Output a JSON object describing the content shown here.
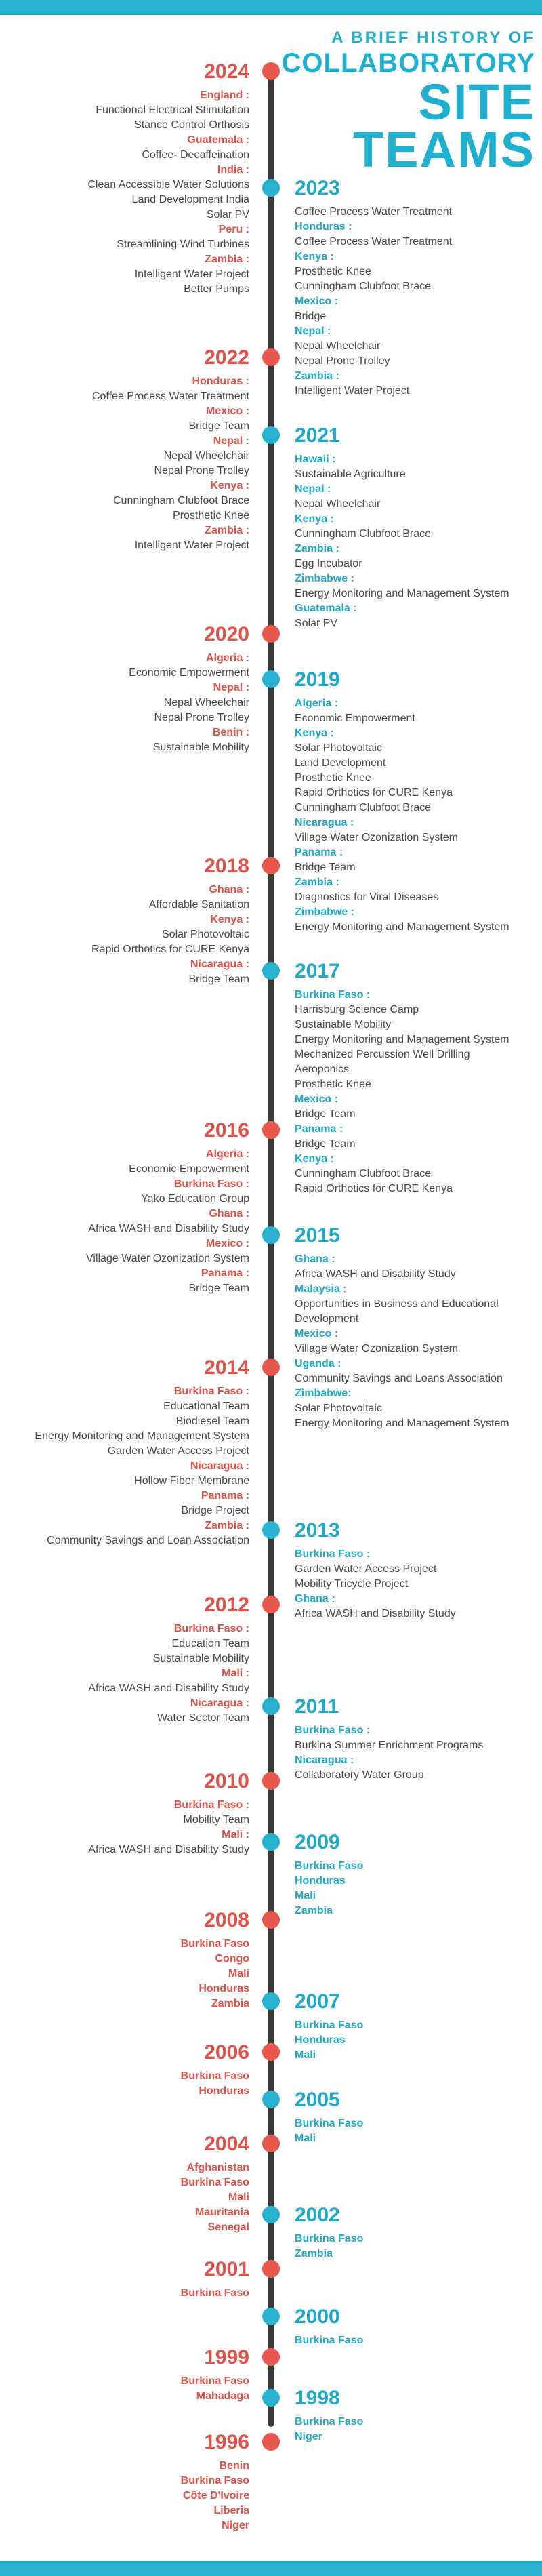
{
  "header": {
    "line1": "A BRIEF HISTORY OF",
    "line2": "COLLABORATORY",
    "line3": "SITE",
    "line4": "TEAMS"
  },
  "colors": {
    "accent_red": "#e8574e",
    "accent_blue": "#28b2cf",
    "timeline": "#3a3a3a"
  },
  "entries": [
    {
      "year": "2024",
      "side": "left",
      "lines": [
        {
          "t": "c",
          "v": "England :"
        },
        {
          "t": "i",
          "v": "Functional Electrical Stimulation"
        },
        {
          "t": "i",
          "v": "Stance Control Orthosis"
        },
        {
          "t": "c",
          "v": "Guatemala :"
        },
        {
          "t": "i",
          "v": "Coffee- Decaffeination"
        },
        {
          "t": "c",
          "v": "India :"
        },
        {
          "t": "i",
          "v": "Clean Accessible Water Solutions"
        },
        {
          "t": "i",
          "v": "Land Development India"
        },
        {
          "t": "i",
          "v": "Solar PV"
        },
        {
          "t": "c",
          "v": "Peru :"
        },
        {
          "t": "i",
          "v": "Streamlining Wind Turbines"
        },
        {
          "t": "c",
          "v": "Zambia :"
        },
        {
          "t": "i",
          "v": "Intelligent Water Project"
        },
        {
          "t": "i",
          "v": "Better Pumps"
        }
      ]
    },
    {
      "year": "2023",
      "side": "right",
      "lines": [
        {
          "t": "i",
          "v": "Coffee Process Water Treatment"
        },
        {
          "t": "c",
          "v": "Honduras :"
        },
        {
          "t": "i",
          "v": "Coffee Process Water Treatment"
        },
        {
          "t": "c",
          "v": "Kenya :"
        },
        {
          "t": "i",
          "v": "Prosthetic Knee"
        },
        {
          "t": "i",
          "v": "Cunningham Clubfoot Brace"
        },
        {
          "t": "c",
          "v": "Mexico :"
        },
        {
          "t": "i",
          "v": "Bridge"
        },
        {
          "t": "c",
          "v": "Nepal :"
        },
        {
          "t": "i",
          "v": "Nepal Wheelchair"
        },
        {
          "t": "i",
          "v": "Nepal Prone Trolley"
        },
        {
          "t": "c",
          "v": "Zambia :"
        },
        {
          "t": "i",
          "v": "Intelligent Water Project"
        }
      ]
    },
    {
      "year": "2022",
      "side": "left",
      "lines": [
        {
          "t": "c",
          "v": "Honduras :"
        },
        {
          "t": "i",
          "v": "Coffee Process Water Treatment"
        },
        {
          "t": "c",
          "v": "Mexico :"
        },
        {
          "t": "i",
          "v": "Bridge Team"
        },
        {
          "t": "c",
          "v": "Nepal :"
        },
        {
          "t": "i",
          "v": "Nepal Wheelchair"
        },
        {
          "t": "i",
          "v": "Nepal Prone Trolley"
        },
        {
          "t": "c",
          "v": "Kenya :"
        },
        {
          "t": "i",
          "v": "Cunningham Clubfoot Brace"
        },
        {
          "t": "i",
          "v": "Prosthetic Knee"
        },
        {
          "t": "c",
          "v": "Zambia :"
        },
        {
          "t": "i",
          "v": "Intelligent Water Project"
        }
      ]
    },
    {
      "year": "2021",
      "side": "right",
      "lines": [
        {
          "t": "c",
          "v": "Hawaii :"
        },
        {
          "t": "i",
          "v": "Sustainable Agriculture"
        },
        {
          "t": "c",
          "v": "Nepal :"
        },
        {
          "t": "i",
          "v": "Nepal Wheelchair"
        },
        {
          "t": "c",
          "v": "Kenya :"
        },
        {
          "t": "i",
          "v": "Cunningham Clubfoot Brace"
        },
        {
          "t": "c",
          "v": "Zambia :"
        },
        {
          "t": "i",
          "v": "Egg Incubator"
        },
        {
          "t": "c",
          "v": "Zimbabwe :"
        },
        {
          "t": "i",
          "v": "Energy Monitoring and Management System"
        },
        {
          "t": "c",
          "v": "Guatemala :"
        },
        {
          "t": "i",
          "v": "Solar PV"
        }
      ]
    },
    {
      "year": "2020",
      "side": "left",
      "lines": [
        {
          "t": "c",
          "v": "Algeria :"
        },
        {
          "t": "i",
          "v": "Economic Empowerment"
        },
        {
          "t": "c",
          "v": "Nepal :"
        },
        {
          "t": "i",
          "v": "Nepal Wheelchair"
        },
        {
          "t": "i",
          "v": "Nepal Prone Trolley"
        },
        {
          "t": "c",
          "v": "Benin :"
        },
        {
          "t": "i",
          "v": "Sustainable Mobility"
        }
      ]
    },
    {
      "year": "2019",
      "side": "right",
      "lines": [
        {
          "t": "c",
          "v": "Algeria :"
        },
        {
          "t": "i",
          "v": "Economic Empowerment"
        },
        {
          "t": "c",
          "v": "Kenya :"
        },
        {
          "t": "i",
          "v": "Solar Photovoltaic"
        },
        {
          "t": "i",
          "v": "Land Development"
        },
        {
          "t": "i",
          "v": "Prosthetic Knee"
        },
        {
          "t": "i",
          "v": "Rapid Orthotics for CURE Kenya"
        },
        {
          "t": "i",
          "v": "Cunningham Clubfoot Brace"
        },
        {
          "t": "c",
          "v": "Nicaragua :"
        },
        {
          "t": "i",
          "v": "Village Water Ozonization System"
        },
        {
          "t": "c",
          "v": "Panama :"
        },
        {
          "t": "i",
          "v": "Bridge Team"
        },
        {
          "t": "c",
          "v": "Zambia :"
        },
        {
          "t": "i",
          "v": "Diagnostics for Viral Diseases"
        },
        {
          "t": "c",
          "v": "Zimbabwe :"
        },
        {
          "t": "i",
          "v": "Energy Monitoring and Management System"
        }
      ]
    },
    {
      "year": "2018",
      "side": "left",
      "lines": [
        {
          "t": "c",
          "v": "Ghana :"
        },
        {
          "t": "i",
          "v": "Affordable Sanitation"
        },
        {
          "t": "c",
          "v": "Kenya :"
        },
        {
          "t": "i",
          "v": "Solar Photovoltaic"
        },
        {
          "t": "i",
          "v": "Rapid Orthotics for CURE Kenya"
        },
        {
          "t": "c",
          "v": "Nicaragua :"
        },
        {
          "t": "i",
          "v": "Bridge Team"
        }
      ]
    },
    {
      "year": "2017",
      "side": "right",
      "lines": [
        {
          "t": "c",
          "v": "Burkina Faso :"
        },
        {
          "t": "i",
          "v": "Harrisburg Science Camp"
        },
        {
          "t": "i",
          "v": "Sustainable Mobility"
        },
        {
          "t": "i",
          "v": "Energy Monitoring and Management System"
        },
        {
          "t": "i",
          "v": "Mechanized Percussion Well Drilling"
        },
        {
          "t": "i",
          "v": "Aeroponics"
        },
        {
          "t": "i",
          "v": "Prosthetic Knee"
        },
        {
          "t": "c",
          "v": "Mexico :"
        },
        {
          "t": "i",
          "v": "Bridge Team"
        },
        {
          "t": "c",
          "v": "Panama :"
        },
        {
          "t": "i",
          "v": "Bridge Team"
        },
        {
          "t": "c",
          "v": "Kenya :"
        },
        {
          "t": "i",
          "v": "Cunningham Clubfoot Brace"
        },
        {
          "t": "i",
          "v": "Rapid Orthotics for CURE Kenya"
        }
      ]
    },
    {
      "year": "2016",
      "side": "left",
      "lines": [
        {
          "t": "c",
          "v": "Algeria :"
        },
        {
          "t": "i",
          "v": "Economic Empowerment"
        },
        {
          "t": "c",
          "v": "Burkina Faso :"
        },
        {
          "t": "i",
          "v": "Yako Education Group"
        },
        {
          "t": "c",
          "v": "Ghana :"
        },
        {
          "t": "i",
          "v": "Africa WASH and Disability Study"
        },
        {
          "t": "c",
          "v": "Mexico :"
        },
        {
          "t": "i",
          "v": "Village Water Ozonization System"
        },
        {
          "t": "c",
          "v": "Panama :"
        },
        {
          "t": "i",
          "v": "Bridge Team"
        }
      ]
    },
    {
      "year": "2015",
      "side": "right",
      "lines": [
        {
          "t": "c",
          "v": "Ghana :"
        },
        {
          "t": "i",
          "v": "Africa WASH and Disability Study"
        },
        {
          "t": "c",
          "v": "Malaysia :"
        },
        {
          "t": "i",
          "v": "Opportunities in Business and Educational"
        },
        {
          "t": "i",
          "v": "Development"
        },
        {
          "t": "c",
          "v": "Mexico :"
        },
        {
          "t": "i",
          "v": "Village Water Ozonization System"
        },
        {
          "t": "c",
          "v": "Uganda :"
        },
        {
          "t": "i",
          "v": "Community Savings and Loans Association"
        },
        {
          "t": "c",
          "v": "Zimbabwe:"
        },
        {
          "t": "i",
          "v": "Solar Photovoltaic"
        },
        {
          "t": "i",
          "v": "Energy Monitoring and Management System"
        }
      ]
    },
    {
      "year": "2014",
      "side": "left",
      "lines": [
        {
          "t": "c",
          "v": "Burkina Faso :"
        },
        {
          "t": "i",
          "v": "Educational Team"
        },
        {
          "t": "i",
          "v": "Biodiesel Team"
        },
        {
          "t": "i",
          "v": "Energy Monitoring and Management System"
        },
        {
          "t": "i",
          "v": "Garden Water Access Project"
        },
        {
          "t": "c",
          "v": "Nicaragua :"
        },
        {
          "t": "i",
          "v": "Hollow Fiber Membrane"
        },
        {
          "t": "c",
          "v": "Panama :"
        },
        {
          "t": "i",
          "v": "Bridge Project"
        },
        {
          "t": "c",
          "v": "Zambia :"
        },
        {
          "t": "i",
          "v": "Community Savings and Loan Association"
        }
      ]
    },
    {
      "year": "2013",
      "side": "right",
      "lines": [
        {
          "t": "c",
          "v": "Burkina Faso :"
        },
        {
          "t": "i",
          "v": "Garden Water Access Project"
        },
        {
          "t": "i",
          "v": "Mobility Tricycle Project"
        },
        {
          "t": "c",
          "v": "Ghana :"
        },
        {
          "t": "i",
          "v": "Africa WASH and Disability Study"
        }
      ]
    },
    {
      "year": "2012",
      "side": "left",
      "lines": [
        {
          "t": "c",
          "v": "Burkina Faso :"
        },
        {
          "t": "i",
          "v": "Education Team"
        },
        {
          "t": "i",
          "v": "Sustainable Mobility"
        },
        {
          "t": "c",
          "v": "Mali :"
        },
        {
          "t": "i",
          "v": "Africa WASH and Disability Study"
        },
        {
          "t": "c",
          "v": "Nicaragua :"
        },
        {
          "t": "i",
          "v": "Water Sector Team"
        }
      ]
    },
    {
      "year": "2011",
      "side": "right",
      "lines": [
        {
          "t": "c",
          "v": "Burkina Faso :"
        },
        {
          "t": "i",
          "v": "Burkina Summer Enrichment Programs"
        },
        {
          "t": "c",
          "v": "Nicaragua :"
        },
        {
          "t": "i",
          "v": "Collaboratory Water Group"
        }
      ]
    },
    {
      "year": "2010",
      "side": "left",
      "lines": [
        {
          "t": "c",
          "v": "Burkina Faso :"
        },
        {
          "t": "i",
          "v": "Mobility Team"
        },
        {
          "t": "c",
          "v": "Mali :"
        },
        {
          "t": "i",
          "v": "Africa WASH and Disability Study"
        }
      ]
    },
    {
      "year": "2009",
      "side": "right",
      "lines": [
        {
          "t": "c",
          "v": "Burkina Faso"
        },
        {
          "t": "c",
          "v": "Honduras"
        },
        {
          "t": "c",
          "v": "Mali"
        },
        {
          "t": "c",
          "v": "Zambia"
        }
      ]
    },
    {
      "year": "2008",
      "side": "left",
      "lines": [
        {
          "t": "c",
          "v": "Burkina Faso"
        },
        {
          "t": "c",
          "v": "Congo"
        },
        {
          "t": "c",
          "v": "Mali"
        },
        {
          "t": "c",
          "v": "Honduras"
        },
        {
          "t": "c",
          "v": "Zambia"
        }
      ]
    },
    {
      "year": "2007",
      "side": "right",
      "lines": [
        {
          "t": "c",
          "v": "Burkina Faso"
        },
        {
          "t": "c",
          "v": "Honduras"
        },
        {
          "t": "c",
          "v": "Mali"
        }
      ]
    },
    {
      "year": "2006",
      "side": "left",
      "lines": [
        {
          "t": "c",
          "v": "Burkina Faso"
        },
        {
          "t": "c",
          "v": "Honduras"
        }
      ]
    },
    {
      "year": "2005",
      "side": "right",
      "lines": [
        {
          "t": "c",
          "v": "Burkina Faso"
        },
        {
          "t": "c",
          "v": "Mali"
        }
      ]
    },
    {
      "year": "2004",
      "side": "left",
      "lines": [
        {
          "t": "c",
          "v": "Afghanistan"
        },
        {
          "t": "c",
          "v": "Burkina Faso"
        },
        {
          "t": "c",
          "v": "Mali"
        },
        {
          "t": "c",
          "v": "Mauritania"
        },
        {
          "t": "c",
          "v": "Senegal"
        }
      ]
    },
    {
      "year": "2002",
      "side": "right",
      "lines": [
        {
          "t": "c",
          "v": "Burkina Faso"
        },
        {
          "t": "c",
          "v": "Zambia"
        }
      ]
    },
    {
      "year": "2001",
      "side": "left",
      "lines": [
        {
          "t": "c",
          "v": "Burkina Faso"
        }
      ]
    },
    {
      "year": "2000",
      "side": "right",
      "lines": [
        {
          "t": "c",
          "v": "Burkina Faso"
        }
      ]
    },
    {
      "year": "1999",
      "side": "left",
      "lines": [
        {
          "t": "c",
          "v": "Burkina Faso"
        },
        {
          "t": "c",
          "v": "Mahadaga"
        }
      ]
    },
    {
      "year": "1998",
      "side": "right",
      "lines": [
        {
          "t": "c",
          "v": "Burkina Faso"
        },
        {
          "t": "c",
          "v": "Niger"
        }
      ]
    },
    {
      "year": "1996",
      "side": "left",
      "lines": [
        {
          "t": "c",
          "v": "Benin"
        },
        {
          "t": "c",
          "v": "Burkina Faso"
        },
        {
          "t": "c",
          "v": "Côte D'Ivoire"
        },
        {
          "t": "c",
          "v": "Liberia"
        },
        {
          "t": "c",
          "v": "Niger"
        }
      ]
    }
  ]
}
